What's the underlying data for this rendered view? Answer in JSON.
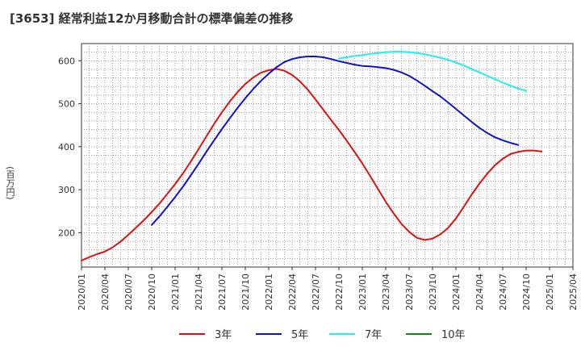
{
  "chart_data": {
    "type": "line",
    "title": "[3653]  経常利益12か月移動合計の標準偏差の推移",
    "xlabel": "",
    "ylabel": "(百万円)",
    "ylim": [
      120,
      640
    ],
    "yticks": [
      200,
      300,
      400,
      500,
      600
    ],
    "xlim": [
      "2020-01",
      "2025-04"
    ],
    "xticks": [
      "2020/01",
      "2020/04",
      "2020/07",
      "2020/10",
      "2021/01",
      "2021/04",
      "2021/07",
      "2021/10",
      "2022/01",
      "2022/04",
      "2022/07",
      "2022/10",
      "2023/01",
      "2023/04",
      "2023/07",
      "2023/10",
      "2024/01",
      "2024/04",
      "2024/07",
      "2024/10",
      "2025/01",
      "2025/04"
    ],
    "grid": true,
    "legend_position": "bottom",
    "series": [
      {
        "name": "3年",
        "color": "#dd1111",
        "x": [
          "2020-01",
          "2020-02",
          "2020-03",
          "2020-04",
          "2020-05",
          "2020-06",
          "2020-07",
          "2020-08",
          "2020-09",
          "2020-10",
          "2020-11",
          "2020-12",
          "2021-01",
          "2021-02",
          "2021-03",
          "2021-04",
          "2021-05",
          "2021-06",
          "2021-07",
          "2021-08",
          "2021-09",
          "2021-10",
          "2021-11",
          "2021-12",
          "2022-01",
          "2022-02",
          "2022-03",
          "2022-04",
          "2022-05",
          "2022-06",
          "2022-07",
          "2022-08",
          "2022-09",
          "2022-10",
          "2022-11",
          "2022-12",
          "2023-01",
          "2023-02",
          "2023-03",
          "2023-04",
          "2023-05",
          "2023-06",
          "2023-07",
          "2023-08",
          "2023-09",
          "2023-10",
          "2023-11",
          "2023-12",
          "2024-01",
          "2024-02",
          "2024-03",
          "2024-04",
          "2024-05",
          "2024-06",
          "2024-07",
          "2024-08",
          "2024-09",
          "2024-10",
          "2024-11",
          "2024-12",
          "2025-01"
        ],
        "values": [
          135,
          143,
          150,
          156,
          166,
          179,
          195,
          212,
          229,
          248,
          268,
          290,
          313,
          338,
          365,
          394,
          424,
          453,
          480,
          505,
          527,
          546,
          561,
          572,
          578,
          581,
          577,
          567,
          552,
          533,
          510,
          486,
          462,
          439,
          414,
          388,
          361,
          332,
          302,
          272,
          245,
          221,
          202,
          188,
          183,
          186,
          196,
          211,
          233,
          260,
          288,
          314,
          337,
          357,
          372,
          383,
          388,
          391,
          391,
          389,
          null
        ]
      },
      {
        "name": "5年",
        "color": "#1111cc",
        "x": [
          "2020-10",
          "2020-11",
          "2020-12",
          "2021-01",
          "2021-02",
          "2021-03",
          "2021-04",
          "2021-05",
          "2021-06",
          "2021-07",
          "2021-08",
          "2021-09",
          "2021-10",
          "2021-11",
          "2021-12",
          "2022-01",
          "2022-02",
          "2022-03",
          "2022-04",
          "2022-05",
          "2022-06",
          "2022-07",
          "2022-08",
          "2022-09",
          "2022-10",
          "2022-11",
          "2022-12",
          "2023-01",
          "2023-02",
          "2023-03",
          "2023-04",
          "2023-05",
          "2023-06",
          "2023-07",
          "2023-08",
          "2023-09",
          "2023-10",
          "2023-11",
          "2023-12",
          "2024-01",
          "2024-02",
          "2024-03",
          "2024-04",
          "2024-05",
          "2024-06",
          "2024-07",
          "2024-08",
          "2024-09",
          "2024-10",
          "2024-11",
          "2024-12",
          "2025-01"
        ],
        "values": [
          218,
          238,
          260,
          283,
          307,
          333,
          360,
          388,
          415,
          441,
          466,
          490,
          513,
          534,
          553,
          570,
          585,
          597,
          604,
          608,
          610,
          610,
          608,
          604,
          599,
          595,
          591,
          588,
          587,
          585,
          583,
          579,
          573,
          565,
          554,
          542,
          529,
          517,
          503,
          488,
          473,
          458,
          444,
          432,
          422,
          415,
          409,
          404,
          null,
          null,
          null,
          null
        ]
      },
      {
        "name": "7年",
        "color": "#22eeee",
        "x": [
          "2022-10",
          "2022-11",
          "2022-12",
          "2023-01",
          "2023-02",
          "2023-03",
          "2023-04",
          "2023-05",
          "2023-06",
          "2023-07",
          "2023-08",
          "2023-09",
          "2023-10",
          "2023-11",
          "2023-12",
          "2024-01",
          "2024-02",
          "2024-03",
          "2024-04",
          "2024-05",
          "2024-06",
          "2024-07",
          "2024-08",
          "2024-09",
          "2024-10",
          "2024-11",
          "2024-12",
          "2025-01"
        ],
        "values": [
          605,
          608,
          611,
          613,
          616,
          618,
          620,
          621,
          621,
          620,
          618,
          615,
          611,
          607,
          602,
          596,
          589,
          581,
          573,
          565,
          557,
          549,
          542,
          535,
          530,
          null,
          null,
          null
        ]
      },
      {
        "name": "10年",
        "color": "#118811",
        "x": [],
        "values": []
      }
    ]
  }
}
